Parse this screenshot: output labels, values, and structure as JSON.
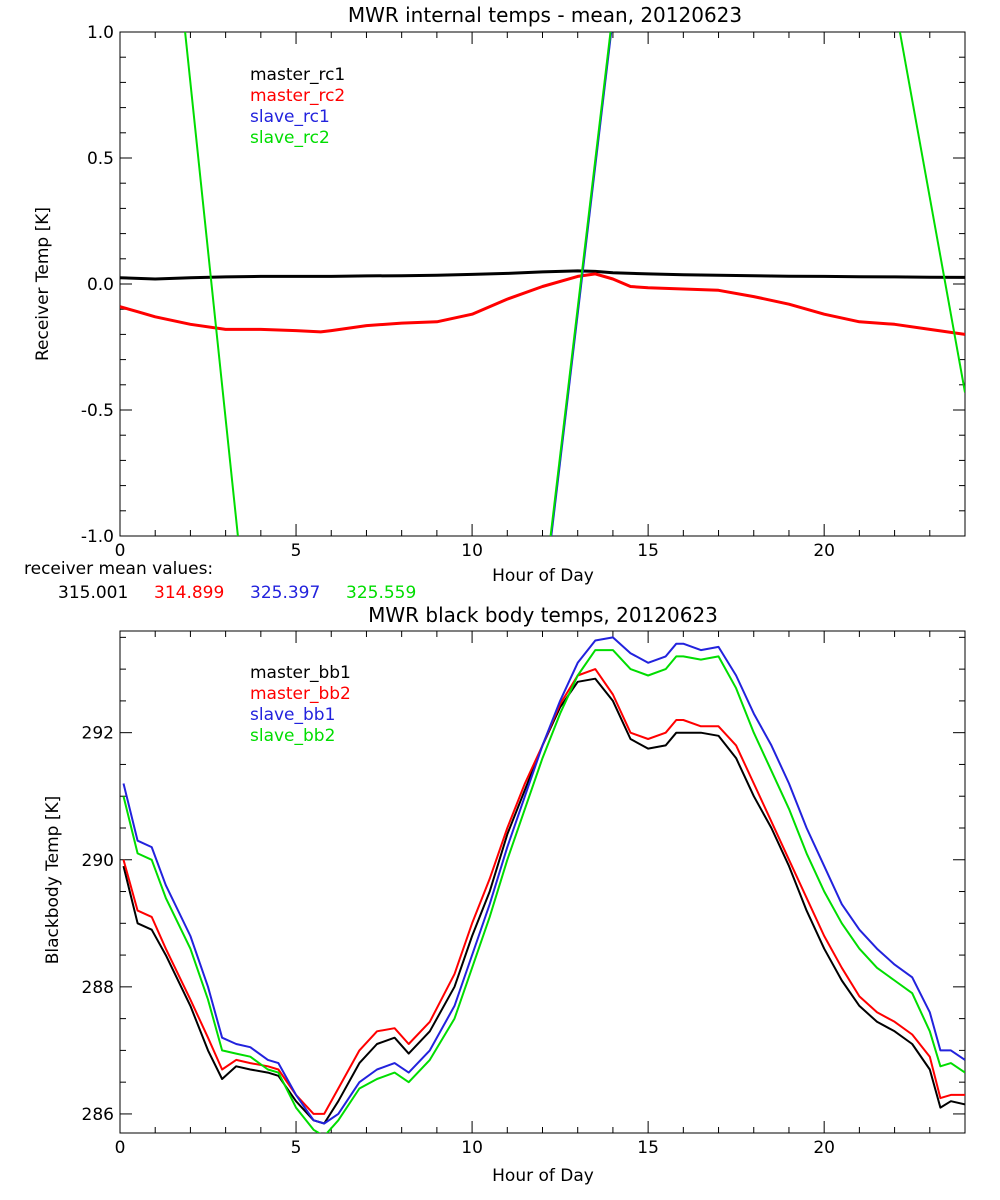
{
  "colors": {
    "black": "#000000",
    "red": "#ff0000",
    "blue": "#2222dd",
    "green": "#00dd00"
  },
  "mean_values": {
    "label": "receiver mean values:",
    "values": [
      {
        "text": "315.001",
        "color": "#000000"
      },
      {
        "text": "314.899",
        "color": "#ff0000"
      },
      {
        "text": "325.397",
        "color": "#2222dd"
      },
      {
        "text": "325.559",
        "color": "#00dd00"
      }
    ]
  },
  "chart_data": [
    {
      "type": "line",
      "title": "MWR internal temps - mean, 20120623",
      "xlabel": "Hour of Day",
      "ylabel": "Receiver Temp [K]",
      "xlim": [
        0,
        24
      ],
      "ylim": [
        -1.0,
        1.0
      ],
      "xticks": [
        0,
        5,
        10,
        15,
        20
      ],
      "xtick_labels": [
        "0",
        "5",
        "10",
        "15",
        "20"
      ],
      "yticks": [
        -1.0,
        -0.5,
        0.0,
        0.5,
        1.0
      ],
      "ytick_labels": [
        "-1.0",
        "-0.5",
        "0.0",
        "0.5",
        "1.0"
      ],
      "grid": false,
      "legend": "top-left",
      "series": [
        {
          "name": "master_rc1",
          "color": "#000000",
          "x": [
            0,
            1,
            2,
            3,
            4,
            5,
            6,
            7,
            8,
            9,
            10,
            11,
            12,
            13,
            13.5,
            14,
            15,
            16,
            17,
            18,
            19,
            20,
            21,
            22,
            23,
            24
          ],
          "y": [
            0.025,
            0.02,
            0.025,
            0.028,
            0.03,
            0.03,
            0.03,
            0.032,
            0.033,
            0.035,
            0.038,
            0.042,
            0.048,
            0.052,
            0.05,
            0.045,
            0.04,
            0.037,
            0.035,
            0.033,
            0.031,
            0.03,
            0.029,
            0.028,
            0.027,
            0.026
          ]
        },
        {
          "name": "master_rc2",
          "color": "#ff0000",
          "x": [
            0,
            0.5,
            1,
            2,
            3,
            4,
            5,
            5.7,
            6,
            7,
            8,
            9,
            10,
            11,
            12,
            13,
            13.5,
            14,
            14.5,
            15,
            16,
            17,
            18,
            19,
            20,
            21,
            22,
            23,
            24
          ],
          "y": [
            -0.09,
            -0.11,
            -0.13,
            -0.16,
            -0.18,
            -0.18,
            -0.185,
            -0.19,
            -0.185,
            -0.165,
            -0.155,
            -0.15,
            -0.12,
            -0.06,
            -0.01,
            0.03,
            0.04,
            0.02,
            -0.01,
            -0.015,
            -0.02,
            -0.025,
            -0.05,
            -0.08,
            -0.12,
            -0.15,
            -0.16,
            -0.18,
            -0.2
          ]
        },
        {
          "name": "slave_rc1",
          "color": "#2222dd",
          "segments": [
            {
              "x": [
                12.25,
                13.95
              ],
              "y": [
                -1.0,
                1.0
              ]
            }
          ]
        },
        {
          "name": "slave_rc2",
          "color": "#00dd00",
          "segments": [
            {
              "x": [
                1.85,
                3.35
              ],
              "y": [
                1.0,
                -1.0
              ]
            },
            {
              "x": [
                12.23,
                13.93
              ],
              "y": [
                -1.0,
                1.0
              ]
            },
            {
              "x": [
                22.15,
                24.0
              ],
              "y": [
                1.0,
                -0.43
              ]
            }
          ]
        }
      ]
    },
    {
      "type": "line",
      "title": "MWR black body temps, 20120623",
      "xlabel": "Hour of Day",
      "ylabel": "Blackbody Temp [K]",
      "xlim": [
        0,
        24
      ],
      "ylim": [
        285.7,
        293.6
      ],
      "xticks": [
        0,
        5,
        10,
        15,
        20
      ],
      "xtick_labels": [
        "0",
        "5",
        "10",
        "15",
        "20"
      ],
      "yticks": [
        286,
        288,
        290,
        292
      ],
      "ytick_labels": [
        "286",
        "288",
        "290",
        "292"
      ],
      "grid": false,
      "legend": "top-left",
      "series": [
        {
          "name": "master_bb1",
          "color": "#000000",
          "x": [
            0.1,
            0.5,
            0.9,
            1.3,
            2.0,
            2.5,
            2.9,
            3.3,
            3.7,
            4.2,
            4.5,
            5.0,
            5.5,
            5.8,
            6.2,
            6.8,
            7.3,
            7.8,
            8.2,
            8.8,
            9.5,
            10.0,
            10.5,
            11.0,
            11.5,
            12.0,
            12.5,
            13.0,
            13.5,
            14.0,
            14.5,
            15.0,
            15.5,
            15.8,
            16.0,
            16.5,
            17.0,
            17.5,
            18.0,
            18.5,
            19.0,
            19.5,
            20.0,
            20.5,
            21.0,
            21.5,
            22.0,
            22.5,
            23.0,
            23.3,
            23.6,
            24.0
          ],
          "y": [
            289.9,
            289.0,
            288.9,
            288.5,
            287.7,
            287.0,
            286.55,
            286.75,
            286.7,
            286.65,
            286.6,
            286.2,
            285.9,
            285.85,
            286.2,
            286.8,
            287.1,
            287.2,
            286.95,
            287.3,
            288.0,
            288.8,
            289.5,
            290.4,
            291.1,
            291.8,
            292.4,
            292.8,
            292.85,
            292.5,
            291.9,
            291.75,
            291.8,
            292.0,
            292.0,
            292.0,
            291.95,
            291.6,
            291.0,
            290.5,
            289.9,
            289.2,
            288.6,
            288.1,
            287.7,
            287.45,
            287.3,
            287.1,
            286.7,
            286.1,
            286.2,
            286.15
          ]
        },
        {
          "name": "master_bb2",
          "color": "#ff0000",
          "x": [
            0.1,
            0.5,
            0.9,
            1.3,
            2.0,
            2.5,
            2.9,
            3.3,
            3.7,
            4.2,
            4.5,
            5.0,
            5.5,
            5.8,
            6.2,
            6.8,
            7.3,
            7.8,
            8.2,
            8.8,
            9.5,
            10.0,
            10.5,
            11.0,
            11.5,
            12.0,
            12.5,
            13.0,
            13.5,
            14.0,
            14.5,
            15.0,
            15.5,
            15.8,
            16.0,
            16.5,
            17.0,
            17.5,
            18.0,
            18.5,
            19.0,
            19.5,
            20.0,
            20.5,
            21.0,
            21.5,
            22.0,
            22.5,
            23.0,
            23.3,
            23.6,
            24.0
          ],
          "y": [
            290.0,
            289.2,
            289.1,
            288.6,
            287.8,
            287.2,
            286.7,
            286.85,
            286.8,
            286.75,
            286.7,
            286.3,
            286.0,
            286.0,
            286.4,
            287.0,
            287.3,
            287.35,
            287.1,
            287.45,
            288.2,
            289.0,
            289.7,
            290.5,
            291.2,
            291.8,
            292.45,
            292.9,
            293.0,
            292.6,
            292.0,
            291.9,
            292.0,
            292.2,
            292.2,
            292.1,
            292.1,
            291.8,
            291.2,
            290.6,
            290.0,
            289.4,
            288.8,
            288.3,
            287.85,
            287.6,
            287.45,
            287.25,
            286.9,
            286.25,
            286.3,
            286.3
          ]
        },
        {
          "name": "slave_bb1",
          "color": "#2222dd",
          "x": [
            0.1,
            0.5,
            0.9,
            1.3,
            2.0,
            2.5,
            2.9,
            3.3,
            3.7,
            4.2,
            4.5,
            5.0,
            5.5,
            5.8,
            6.2,
            6.8,
            7.3,
            7.8,
            8.2,
            8.8,
            9.5,
            10.0,
            10.5,
            11.0,
            11.5,
            12.0,
            12.5,
            13.0,
            13.5,
            14.0,
            14.5,
            15.0,
            15.5,
            15.8,
            16.0,
            16.5,
            17.0,
            17.5,
            18.0,
            18.5,
            19.0,
            19.5,
            20.0,
            20.5,
            21.0,
            21.5,
            22.0,
            22.5,
            23.0,
            23.3,
            23.6,
            24.0
          ],
          "y": [
            291.2,
            290.3,
            290.2,
            289.6,
            288.8,
            288.0,
            287.2,
            287.1,
            287.05,
            286.85,
            286.8,
            286.3,
            285.9,
            285.85,
            286.0,
            286.5,
            286.7,
            286.8,
            286.65,
            287.0,
            287.7,
            288.5,
            289.3,
            290.2,
            291.0,
            291.8,
            292.5,
            293.1,
            293.45,
            293.5,
            293.25,
            293.1,
            293.2,
            293.4,
            293.4,
            293.3,
            293.35,
            292.9,
            292.3,
            291.8,
            291.2,
            290.5,
            289.9,
            289.3,
            288.9,
            288.6,
            288.35,
            288.15,
            287.6,
            287.0,
            287.0,
            286.85
          ]
        },
        {
          "name": "slave_bb2",
          "color": "#00dd00",
          "x": [
            0.1,
            0.5,
            0.9,
            1.3,
            2.0,
            2.5,
            2.9,
            3.3,
            3.7,
            4.2,
            4.5,
            5.0,
            5.5,
            5.8,
            6.2,
            6.8,
            7.3,
            7.8,
            8.2,
            8.8,
            9.5,
            10.0,
            10.5,
            11.0,
            11.5,
            12.0,
            12.5,
            13.0,
            13.5,
            14.0,
            14.5,
            15.0,
            15.5,
            15.8,
            16.0,
            16.5,
            17.0,
            17.5,
            18.0,
            18.5,
            19.0,
            19.5,
            20.0,
            20.5,
            21.0,
            21.5,
            22.0,
            22.5,
            23.0,
            23.3,
            23.6,
            24.0
          ],
          "y": [
            291.0,
            290.1,
            290.0,
            289.4,
            288.6,
            287.8,
            287.0,
            286.95,
            286.9,
            286.7,
            286.65,
            286.1,
            285.75,
            285.65,
            285.9,
            286.4,
            286.55,
            286.65,
            286.5,
            286.85,
            287.5,
            288.3,
            289.1,
            290.0,
            290.8,
            291.6,
            292.3,
            292.9,
            293.3,
            293.3,
            293.0,
            292.9,
            293.0,
            293.2,
            293.2,
            293.15,
            293.2,
            292.7,
            292.0,
            291.4,
            290.8,
            290.1,
            289.5,
            289.0,
            288.6,
            288.3,
            288.1,
            287.9,
            287.3,
            286.75,
            286.8,
            286.65
          ]
        }
      ]
    }
  ]
}
